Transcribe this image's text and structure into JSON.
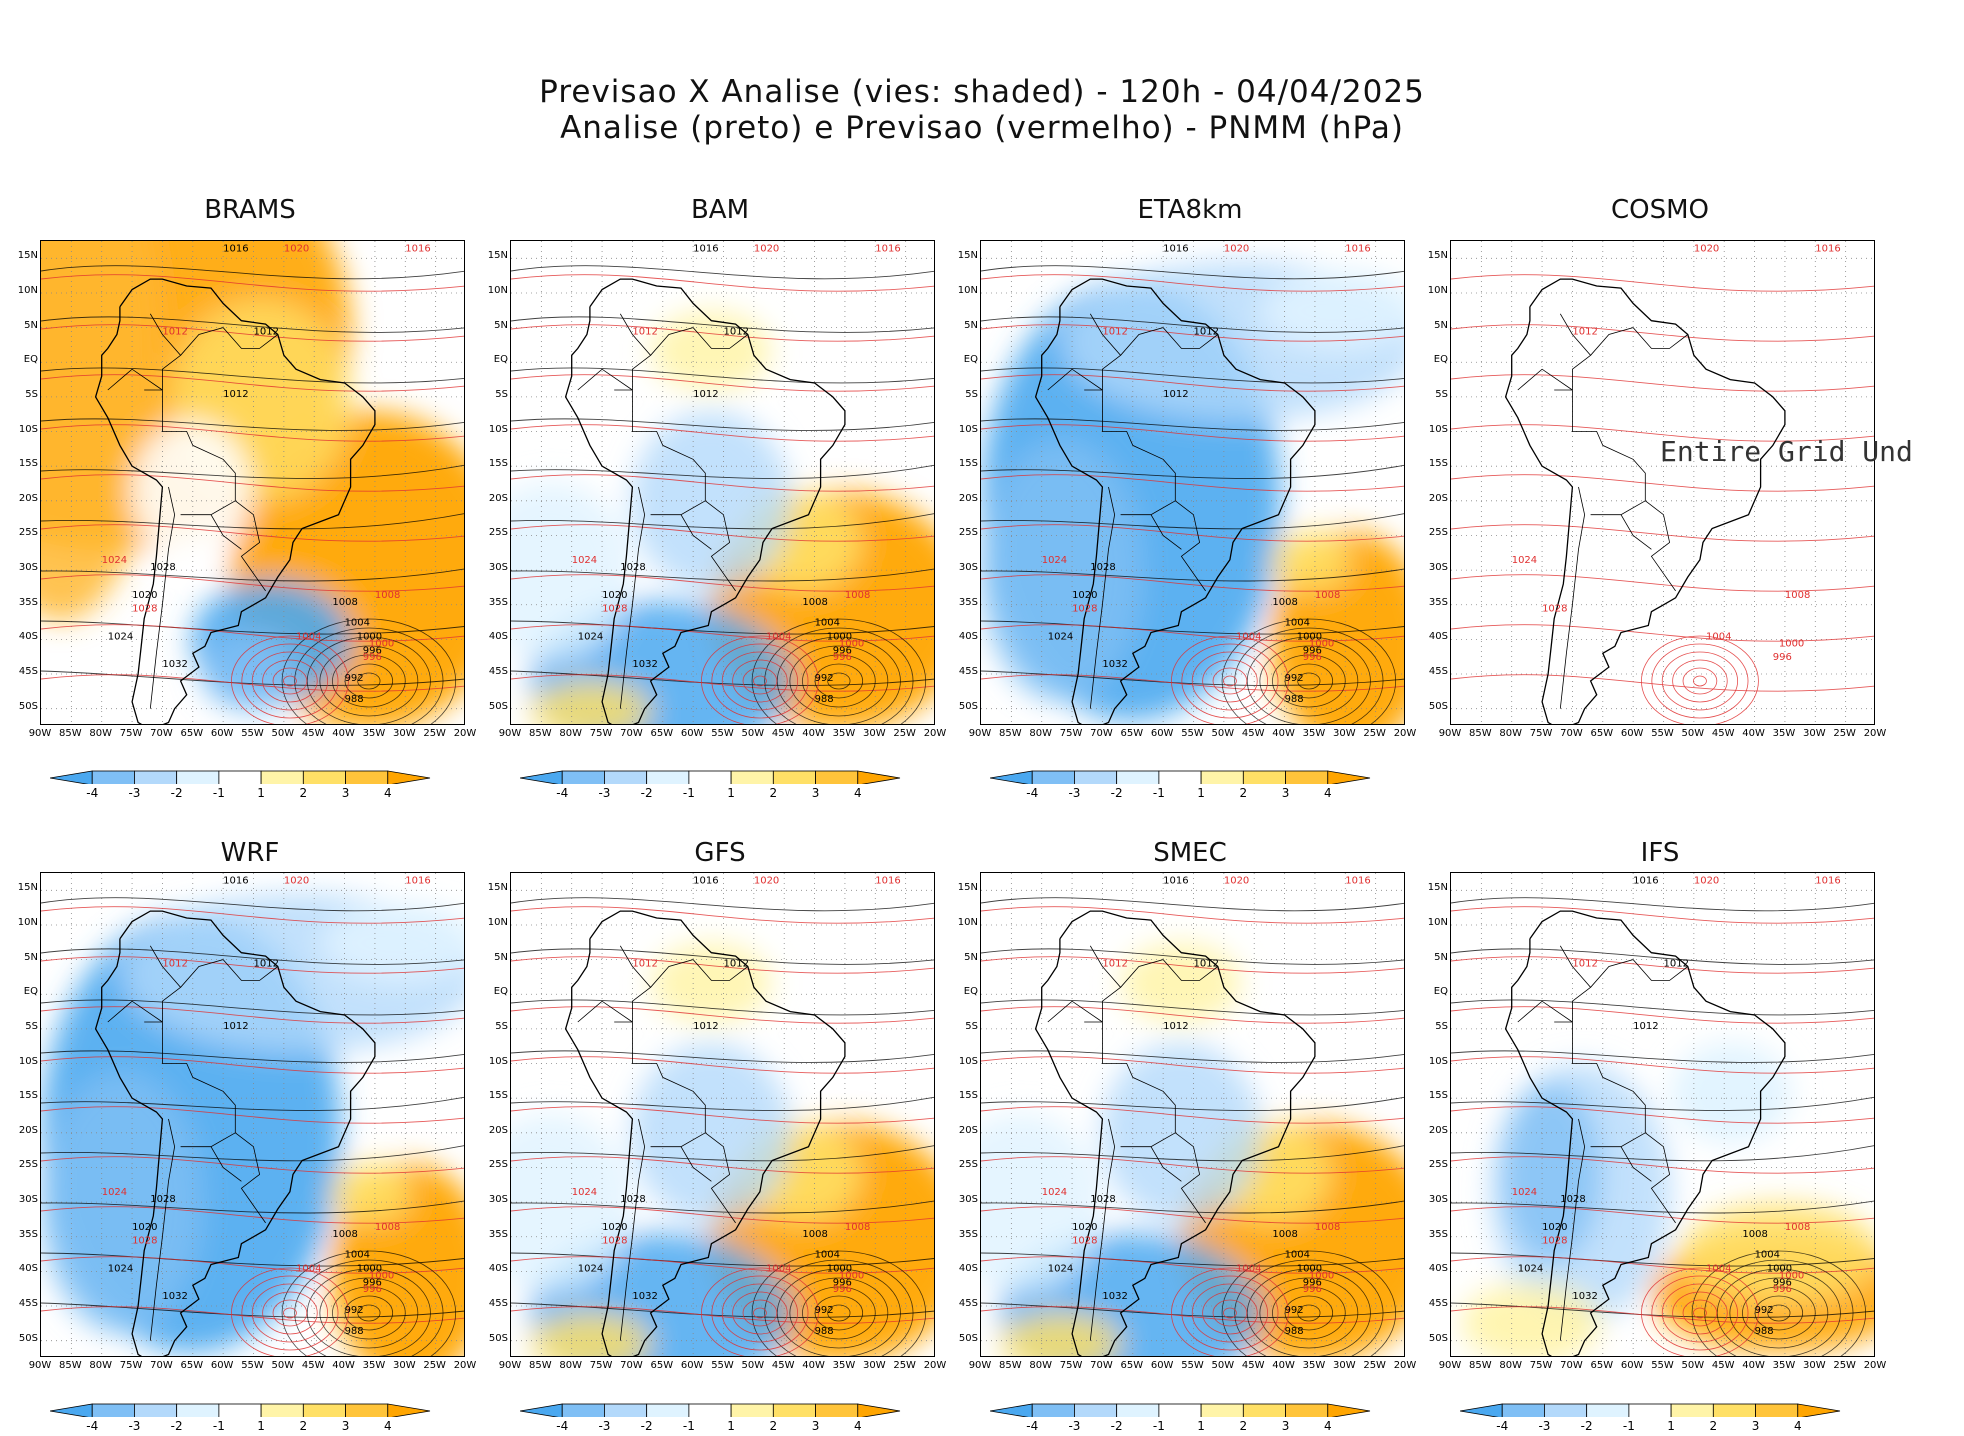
{
  "title": {
    "line1": "Previsao X Analise (vies: shaded) - 120h - 04/04/2025",
    "line2": "Analise (preto) e Previsao (vermelho) - PNMM (hPa)"
  },
  "panels": [
    {
      "name": "BRAMS",
      "bias": "warm"
    },
    {
      "name": "BAM",
      "bias": "mixed"
    },
    {
      "name": "ETA8km",
      "bias": "cold"
    },
    {
      "name": "COSMO",
      "bias": "none",
      "note": "Entire Grid Und"
    },
    {
      "name": "WRF",
      "bias": "cold"
    },
    {
      "name": "GFS",
      "bias": "mixed"
    },
    {
      "name": "SMEC",
      "bias": "mixed"
    },
    {
      "name": "IFS",
      "bias": "light"
    }
  ],
  "lat_labels": [
    "15N",
    "10N",
    "5N",
    "EQ",
    "5S",
    "10S",
    "15S",
    "20S",
    "25S",
    "30S",
    "35S",
    "40S",
    "45S",
    "50S"
  ],
  "lon_labels": [
    "90W",
    "85W",
    "80W",
    "75W",
    "70W",
    "65W",
    "60W",
    "55W",
    "50W",
    "45W",
    "40W",
    "35W",
    "30W",
    "25W",
    "20W"
  ],
  "colorbar": {
    "labels": [
      "-4",
      "-3",
      "-2",
      "-1",
      "1",
      "2",
      "3",
      "4"
    ],
    "colors": [
      "#4aa8f0",
      "#7fbff5",
      "#b3d9fb",
      "#dff3ff",
      "#ffffff",
      "#fff4a8",
      "#ffe066",
      "#ffc43a",
      "#ffa500"
    ]
  },
  "isobar_labels": {
    "analysis": [
      "1016",
      "1012",
      "1012",
      "1008",
      "1004",
      "1000",
      "996",
      "992",
      "988",
      "1020",
      "1024",
      "1028",
      "1032"
    ],
    "forecast": [
      "1020",
      "1016",
      "1012",
      "1008",
      "1004",
      "1000",
      "996",
      "1024",
      "1028"
    ]
  },
  "colors": {
    "analysis_line": "#000000",
    "forecast_line": "#e03030",
    "coast": "#000000"
  }
}
